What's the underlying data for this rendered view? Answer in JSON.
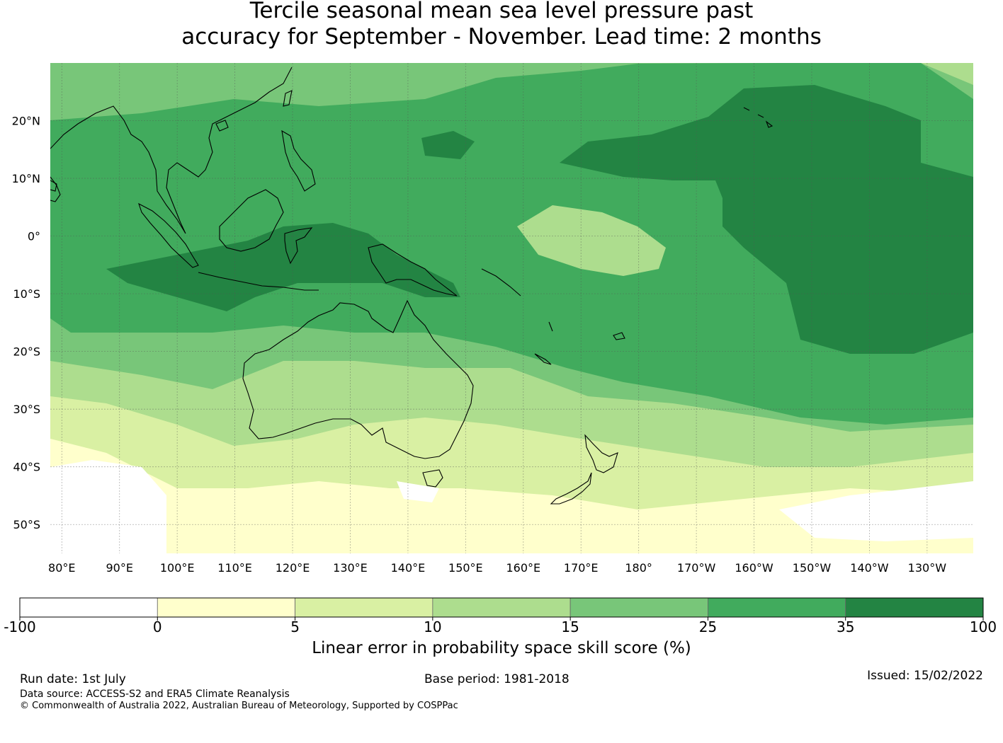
{
  "title_line1": "Tercile seasonal mean sea level pressure past",
  "title_line2": "accuracy for September - November. Lead time: 2 months",
  "map": {
    "lon_labels": [
      "80°E",
      "90°E",
      "100°E",
      "110°E",
      "120°E",
      "130°E",
      "140°E",
      "150°E",
      "160°E",
      "170°E",
      "180°",
      "170°W",
      "160°W",
      "150°W",
      "140°W",
      "130°W"
    ],
    "lat_labels": [
      "20°N",
      "10°N",
      "0°",
      "10°S",
      "20°S",
      "30°S",
      "40°S",
      "50°S"
    ],
    "lon_values": [
      80,
      90,
      100,
      110,
      120,
      130,
      140,
      150,
      160,
      170,
      180,
      190,
      200,
      210,
      220,
      230
    ],
    "lat_values": [
      20,
      10,
      0,
      -10,
      -20,
      -30,
      -40,
      -50
    ],
    "extent": {
      "lon_min": 78,
      "lon_max": 238,
      "lat_min": -55,
      "lat_max": 30
    }
  },
  "colorbar": {
    "bins": [
      "-100",
      "0",
      "5",
      "10",
      "15",
      "25",
      "35",
      "100"
    ],
    "colors": [
      "#ffffff",
      "#ffffcc",
      "#d9f0a3",
      "#addd8e",
      "#78c679",
      "#41ab5d",
      "#238443"
    ],
    "title": "Linear error in probability space skill score (%)"
  },
  "footer": {
    "run_date": "Run date: 1st July",
    "base_period": "Base period: 1981-2018",
    "issued": "Issued: 15/02/2022",
    "data_source": "Data source: ACCESS-S2 and ERA5 Climate Reanalysis",
    "copyright": "© Commonwealth of Australia 2022, Australian Bureau of Meteorology, Supported by COSPPac"
  }
}
